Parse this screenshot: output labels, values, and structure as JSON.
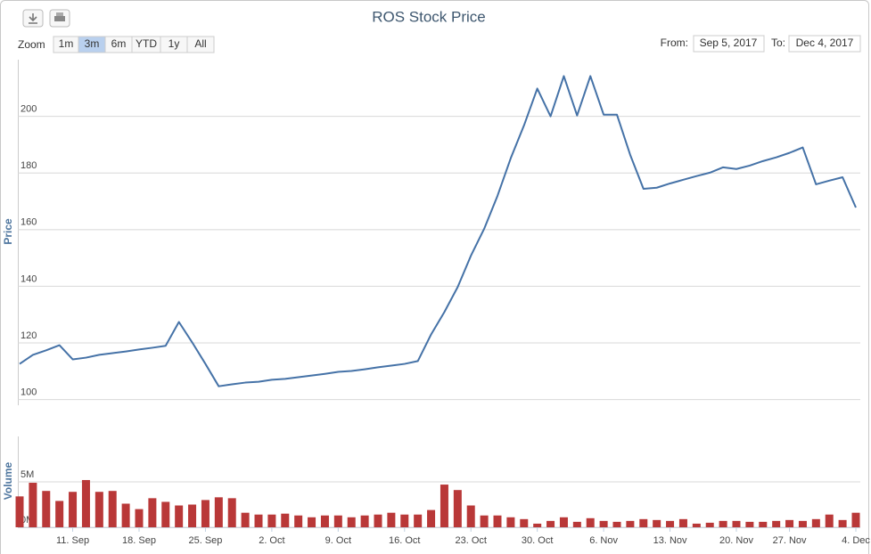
{
  "ui": {
    "zoom_label": "Zoom",
    "zoom_buttons": [
      "1m",
      "3m",
      "6m",
      "YTD",
      "1y",
      "All"
    ],
    "from_label": "From:",
    "from_value": "Sep 5, 2017",
    "to_label": "To:",
    "to_value": "Dec 4, 2017"
  },
  "chart_data": [
    {
      "type": "line",
      "title": "ROS Stock Price",
      "ylabel": "Price",
      "color": "#4572a7",
      "grid": true,
      "x": [
        "2017-09-05",
        "2017-09-06",
        "2017-09-07",
        "2017-09-08",
        "2017-09-11",
        "2017-09-12",
        "2017-09-13",
        "2017-09-14",
        "2017-09-15",
        "2017-09-18",
        "2017-09-19",
        "2017-09-20",
        "2017-09-21",
        "2017-09-22",
        "2017-09-25",
        "2017-09-26",
        "2017-09-27",
        "2017-09-28",
        "2017-09-29",
        "2017-10-02",
        "2017-10-03",
        "2017-10-04",
        "2017-10-05",
        "2017-10-06",
        "2017-10-09",
        "2017-10-10",
        "2017-10-11",
        "2017-10-12",
        "2017-10-13",
        "2017-10-16",
        "2017-10-17",
        "2017-10-18",
        "2017-10-19",
        "2017-10-20",
        "2017-10-23",
        "2017-10-24",
        "2017-10-25",
        "2017-10-26",
        "2017-10-27",
        "2017-10-30",
        "2017-10-31",
        "2017-11-01",
        "2017-11-02",
        "2017-11-03",
        "2017-11-06",
        "2017-11-07",
        "2017-11-08",
        "2017-11-09",
        "2017-11-10",
        "2017-11-13",
        "2017-11-14",
        "2017-11-15",
        "2017-11-16",
        "2017-11-17",
        "2017-11-20",
        "2017-11-21",
        "2017-11-22",
        "2017-11-24",
        "2017-11-27",
        "2017-11-28",
        "2017-11-29",
        "2017-11-30",
        "2017-12-01",
        "2017-12-04"
      ],
      "values": [
        112.6,
        115.8,
        117.4,
        119.2,
        114.2,
        114.8,
        115.8,
        116.4,
        117,
        117.7,
        118.3,
        119,
        127.4,
        120.2,
        112.6,
        104.7,
        105.4,
        106,
        106.3,
        107,
        107.3,
        107.9,
        108.5,
        109.1,
        109.8,
        110.1,
        110.7,
        111.4,
        112,
        112.6,
        113.6,
        123,
        130.9,
        139.7,
        150.8,
        160.3,
        171.9,
        185.2,
        196.8,
        209.8,
        200,
        214.2,
        200.3,
        214.2,
        200.6,
        200.6,
        186.4,
        174.4,
        174.8,
        176.3,
        177.6,
        178.9,
        180.1,
        182,
        181.4,
        182.6,
        184.2,
        185.5,
        187.1,
        189,
        176,
        177.3,
        178.5,
        167.8
      ],
      "ylim": [
        98,
        220
      ],
      "yticks": [
        100,
        120,
        140,
        160,
        180,
        200
      ]
    },
    {
      "type": "bar",
      "ylabel": "Volume",
      "color": "#b93838",
      "grid": true,
      "x": [
        "2017-09-05",
        "2017-09-06",
        "2017-09-07",
        "2017-09-08",
        "2017-09-11",
        "2017-09-12",
        "2017-09-13",
        "2017-09-14",
        "2017-09-15",
        "2017-09-18",
        "2017-09-19",
        "2017-09-20",
        "2017-09-21",
        "2017-09-22",
        "2017-09-25",
        "2017-09-26",
        "2017-09-27",
        "2017-09-28",
        "2017-09-29",
        "2017-10-02",
        "2017-10-03",
        "2017-10-04",
        "2017-10-05",
        "2017-10-06",
        "2017-10-09",
        "2017-10-10",
        "2017-10-11",
        "2017-10-12",
        "2017-10-13",
        "2017-10-16",
        "2017-10-17",
        "2017-10-18",
        "2017-10-19",
        "2017-10-20",
        "2017-10-23",
        "2017-10-24",
        "2017-10-25",
        "2017-10-26",
        "2017-10-27",
        "2017-10-30",
        "2017-10-31",
        "2017-11-01",
        "2017-11-02",
        "2017-11-03",
        "2017-11-06",
        "2017-11-07",
        "2017-11-08",
        "2017-11-09",
        "2017-11-10",
        "2017-11-13",
        "2017-11-14",
        "2017-11-15",
        "2017-11-16",
        "2017-11-17",
        "2017-11-20",
        "2017-11-21",
        "2017-11-22",
        "2017-11-24",
        "2017-11-27",
        "2017-11-28",
        "2017-11-29",
        "2017-11-30",
        "2017-12-01",
        "2017-12-04"
      ],
      "values": [
        3400000,
        4900000,
        4000000,
        2900000,
        3900000,
        5200000,
        3900000,
        4000000,
        2600000,
        2000000,
        3200000,
        2800000,
        2400000,
        2500000,
        3000000,
        3300000,
        3200000,
        1600000,
        1400000,
        1400000,
        1500000,
        1300000,
        1100000,
        1300000,
        1300000,
        1100000,
        1300000,
        1400000,
        1600000,
        1400000,
        1400000,
        1900000,
        4700000,
        4100000,
        2400000,
        1300000,
        1300000,
        1100000,
        900000,
        400000,
        700000,
        1100000,
        600000,
        1000000,
        700000,
        600000,
        700000,
        900000,
        800000,
        700000,
        900000,
        400000,
        500000,
        700000,
        700000,
        600000,
        600000,
        700000,
        800000,
        700000,
        900000,
        1400000,
        800000,
        1600000
      ],
      "ylim": [
        0,
        10000000
      ],
      "yticks": [
        {
          "value": 0,
          "label": "0M"
        },
        {
          "value": 5000000,
          "label": "5M"
        }
      ],
      "xticks": [
        {
          "value": "2017-09-11",
          "label": "11. Sep"
        },
        {
          "value": "2017-09-18",
          "label": "18. Sep"
        },
        {
          "value": "2017-09-25",
          "label": "25. Sep"
        },
        {
          "value": "2017-10-02",
          "label": "2. Oct"
        },
        {
          "value": "2017-10-09",
          "label": "9. Oct"
        },
        {
          "value": "2017-10-16",
          "label": "16. Oct"
        },
        {
          "value": "2017-10-23",
          "label": "23. Oct"
        },
        {
          "value": "2017-10-30",
          "label": "30. Oct"
        },
        {
          "value": "2017-11-06",
          "label": "6. Nov"
        },
        {
          "value": "2017-11-13",
          "label": "13. Nov"
        },
        {
          "value": "2017-11-20",
          "label": "20. Nov"
        },
        {
          "value": "2017-11-27",
          "label": "27. Nov"
        },
        {
          "value": "2017-12-04",
          "label": "4. Dec"
        }
      ]
    }
  ]
}
